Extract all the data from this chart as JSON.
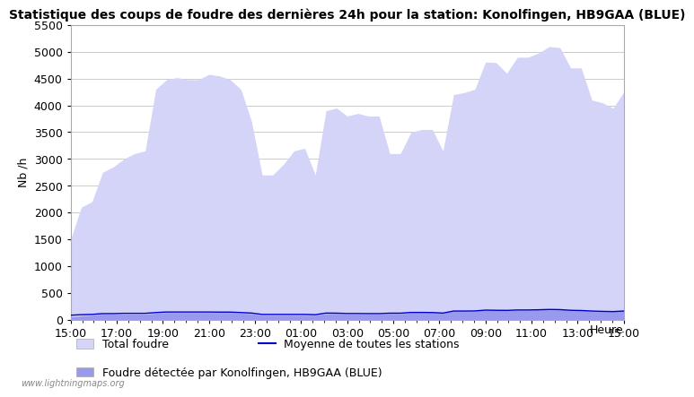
{
  "title": "Statistique des coups de foudre des dernières 24h pour la station: Konolfingen, HB9GAA (BLUE)",
  "ylabel": "Nb /h",
  "xlabel": "Heure",
  "watermark": "www.lightningmaps.org",
  "x_ticks": [
    "15:00",
    "17:00",
    "19:00",
    "21:00",
    "23:00",
    "01:00",
    "03:00",
    "05:00",
    "07:00",
    "09:00",
    "11:00",
    "13:00",
    "15:00"
  ],
  "ylim": [
    0,
    5500
  ],
  "y_ticks": [
    0,
    500,
    1000,
    1500,
    2000,
    2500,
    3000,
    3500,
    4000,
    4500,
    5000,
    5500
  ],
  "bg_color": "#ffffff",
  "plot_bg_color": "#ffffff",
  "grid_color": "#cccccc",
  "fill_total_color": "#d4d4f8",
  "fill_local_color": "#9999ee",
  "mean_line_color": "#0000cc",
  "title_fontsize": 10,
  "legend_fontsize": 9,
  "tick_fontsize": 9,
  "total_foudre": [
    1500,
    2100,
    2200,
    2750,
    2850,
    3000,
    3100,
    3150,
    4300,
    4480,
    4520,
    4480,
    4480,
    4580,
    4550,
    4480,
    4300,
    3700,
    2700,
    2700,
    2900,
    3150,
    3200,
    2700,
    3900,
    3950,
    3800,
    3850,
    3800,
    3800,
    3100,
    3100,
    3500,
    3550,
    3550,
    3150,
    4200,
    4240,
    4300,
    4810,
    4800,
    4600,
    4900,
    4900,
    4980,
    5100,
    5080,
    4700,
    4700,
    4100,
    4050,
    3950,
    4250
  ],
  "local_foudre": [
    50,
    70,
    80,
    100,
    100,
    100,
    100,
    100,
    120,
    130,
    130,
    130,
    130,
    130,
    130,
    130,
    120,
    110,
    80,
    80,
    80,
    80,
    80,
    80,
    110,
    110,
    100,
    100,
    100,
    100,
    110,
    110,
    130,
    130,
    130,
    120,
    160,
    160,
    160,
    180,
    180,
    175,
    180,
    180,
    185,
    190,
    190,
    175,
    170,
    160,
    155,
    150,
    160
  ],
  "mean_line": [
    80,
    90,
    95,
    110,
    110,
    115,
    115,
    115,
    130,
    140,
    140,
    140,
    140,
    140,
    138,
    138,
    130,
    120,
    95,
    95,
    95,
    95,
    95,
    90,
    120,
    118,
    112,
    112,
    110,
    110,
    118,
    118,
    132,
    132,
    130,
    120,
    158,
    158,
    160,
    175,
    172,
    170,
    178,
    178,
    182,
    188,
    185,
    172,
    168,
    158,
    152,
    148,
    158
  ]
}
